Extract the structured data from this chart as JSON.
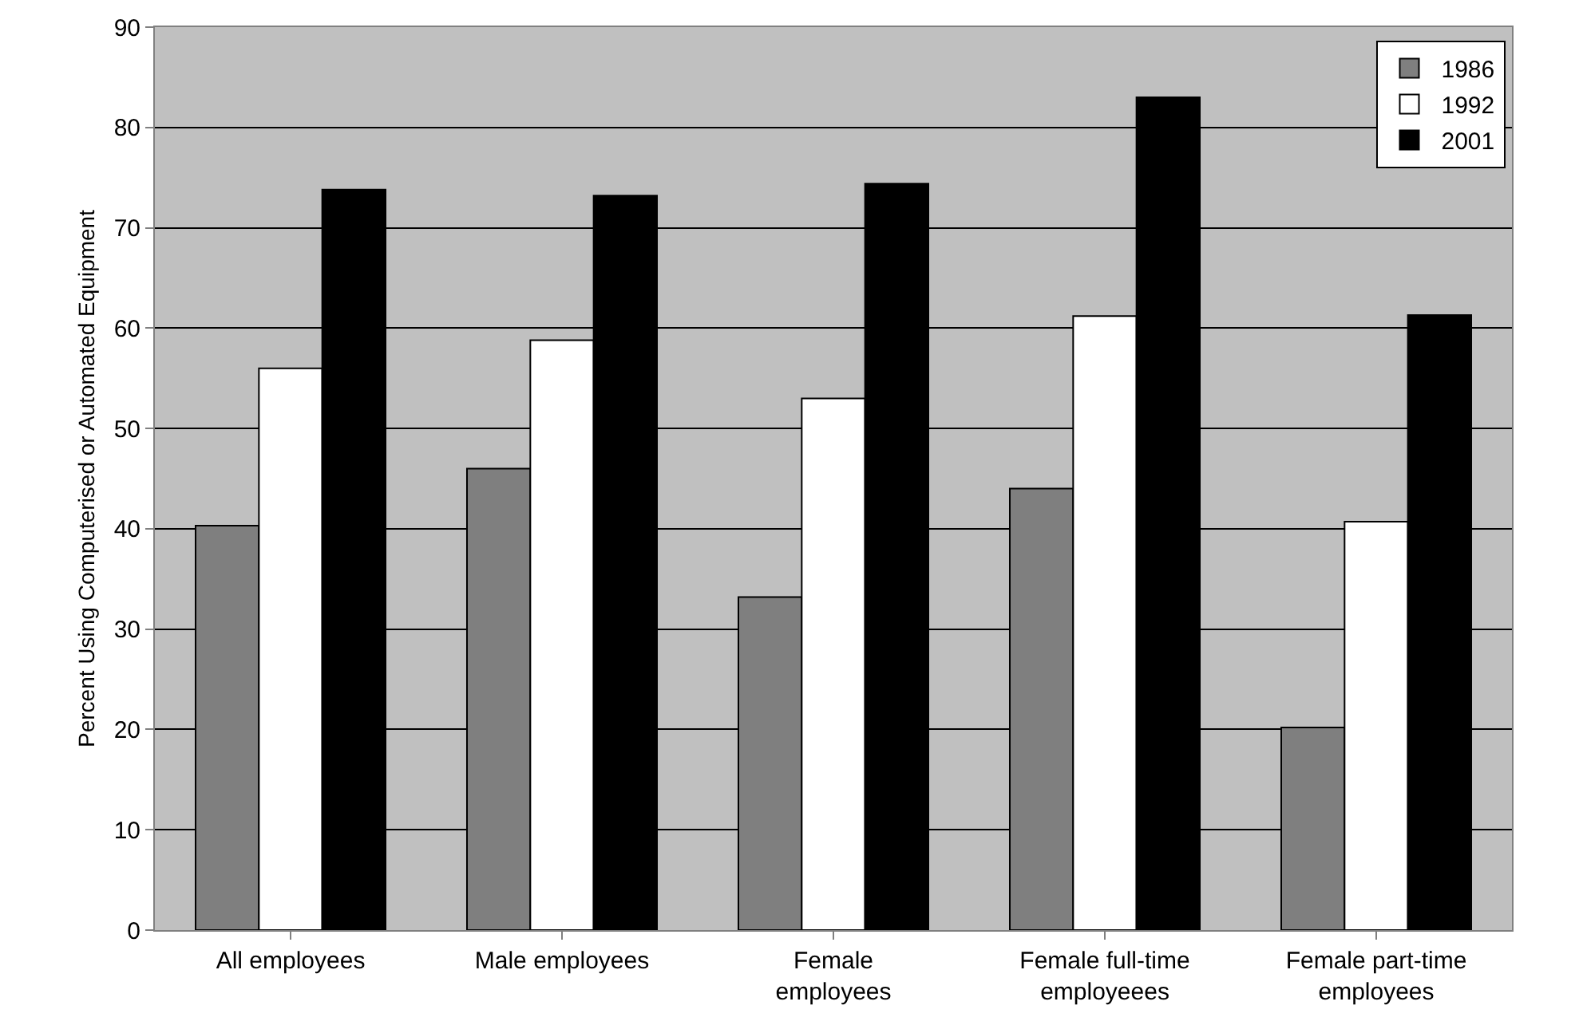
{
  "chart_data": {
    "type": "bar",
    "ylabel": "Percent Using Computerised or Automated Equipment",
    "categories": [
      "All employees",
      "Male employees",
      "Female employees",
      "Female full-time employeees",
      "Female part-time employees"
    ],
    "series": [
      {
        "name": "1986",
        "color": "#7f7f7f",
        "values": [
          40.3,
          46,
          33.2,
          44,
          20.2
        ]
      },
      {
        "name": "1992",
        "color": "#ffffff",
        "values": [
          56,
          58.8,
          53,
          61.2,
          40.7
        ]
      },
      {
        "name": "2001",
        "color": "#000000",
        "values": [
          73.8,
          73.2,
          74.4,
          83,
          61.3
        ]
      }
    ],
    "ylim": [
      0,
      90
    ],
    "yticks": [
      0,
      10,
      20,
      30,
      40,
      50,
      60,
      70,
      80,
      90
    ],
    "grid": "y",
    "legend": "top right"
  }
}
